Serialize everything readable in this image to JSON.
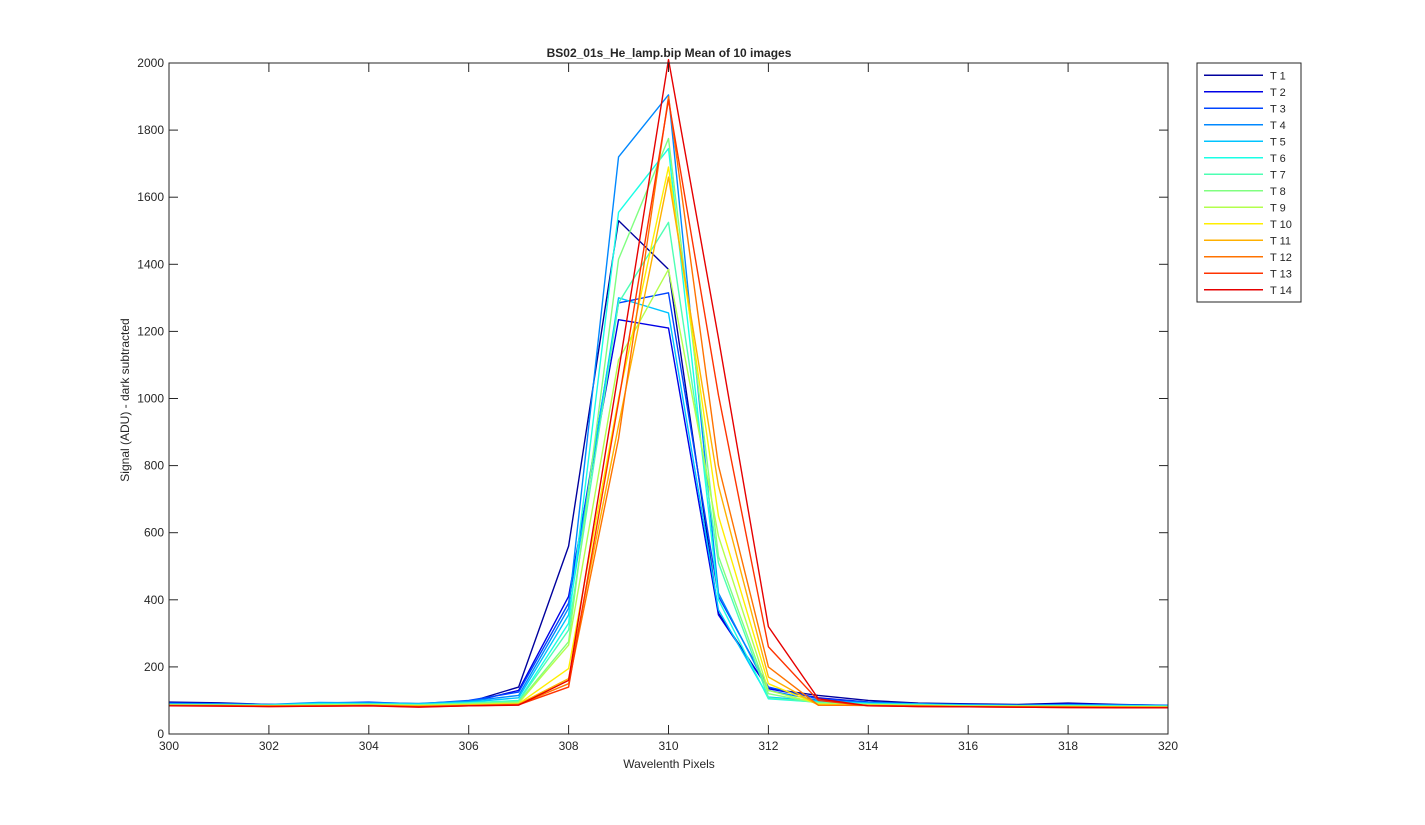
{
  "chart_data": {
    "type": "line",
    "title": "BS02_01s_He_lamp.bip  Mean of 10 images",
    "xlabel": "Wavelenth Pixels",
    "ylabel": "Signal (ADU) - dark subtracted",
    "xlim": [
      300,
      320
    ],
    "ylim": [
      0,
      2000
    ],
    "xticks": [
      "300",
      "302",
      "304",
      "306",
      "308",
      "310",
      "312",
      "314",
      "316",
      "318",
      "320"
    ],
    "yticks": [
      "0",
      "200",
      "400",
      "600",
      "800",
      "1000",
      "1200",
      "1400",
      "1600",
      "1800",
      "2000"
    ],
    "grid": false,
    "legend_position": "outside-top-right",
    "x": [
      300,
      301,
      302,
      303,
      304,
      305,
      306,
      307,
      308,
      309,
      310,
      311,
      312,
      313,
      314,
      315,
      316,
      317,
      318,
      319,
      320
    ],
    "series": [
      {
        "name": "T 1",
        "color": "#00009e",
        "values": [
          95,
          93,
          88,
          90,
          92,
          90,
          95,
          140,
          560,
          1530,
          1385,
          360,
          135,
          115,
          100,
          92,
          90,
          88,
          92,
          88,
          85
        ]
      },
      {
        "name": "T 2",
        "color": "#0000e6",
        "values": [
          93,
          91,
          88,
          89,
          90,
          89,
          94,
          130,
          410,
          1235,
          1210,
          355,
          135,
          108,
          95,
          90,
          88,
          86,
          90,
          87,
          85
        ]
      },
      {
        "name": "T 3",
        "color": "#0044ff",
        "values": [
          92,
          90,
          87,
          92,
          95,
          90,
          100,
          125,
          390,
          1285,
          1315,
          410,
          140,
          105,
          95,
          90,
          88,
          86,
          88,
          87,
          86
        ]
      },
      {
        "name": "T 4",
        "color": "#0088ff",
        "values": [
          90,
          90,
          88,
          94,
          93,
          91,
          98,
          115,
          375,
          1720,
          1905,
          420,
          130,
          100,
          93,
          90,
          87,
          86,
          87,
          86,
          85
        ]
      },
      {
        "name": "T 5",
        "color": "#00c4ff",
        "values": [
          89,
          88,
          87,
          92,
          91,
          90,
          95,
          108,
          355,
          1300,
          1255,
          370,
          110,
          98,
          92,
          89,
          86,
          85,
          86,
          85,
          84
        ]
      },
      {
        "name": "T 6",
        "color": "#19ffe6",
        "values": [
          88,
          87,
          86,
          90,
          90,
          88,
          93,
          100,
          330,
          1555,
          1745,
          400,
          105,
          95,
          90,
          88,
          85,
          84,
          85,
          84,
          83
        ]
      },
      {
        "name": "T 7",
        "color": "#4dffb3",
        "values": [
          88,
          87,
          85,
          88,
          89,
          87,
          92,
          98,
          310,
          1285,
          1525,
          510,
          108,
          94,
          89,
          87,
          84,
          84,
          84,
          83,
          82
        ]
      },
      {
        "name": "T 8",
        "color": "#80ff80",
        "values": [
          87,
          86,
          85,
          87,
          88,
          86,
          90,
          95,
          275,
          1415,
          1775,
          530,
          120,
          92,
          88,
          86,
          84,
          83,
          83,
          82,
          82
        ]
      },
      {
        "name": "T 9",
        "color": "#b3ff4d",
        "values": [
          86,
          86,
          84,
          86,
          87,
          85,
          88,
          92,
          265,
          1115,
          1385,
          590,
          130,
          90,
          87,
          85,
          83,
          82,
          82,
          81,
          81
        ]
      },
      {
        "name": "T 10",
        "color": "#ffee00",
        "values": [
          86,
          85,
          84,
          85,
          86,
          84,
          87,
          90,
          195,
          1000,
          1690,
          650,
          150,
          88,
          86,
          84,
          82,
          82,
          82,
          81,
          80
        ]
      },
      {
        "name": "T 11",
        "color": "#ffb000",
        "values": [
          85,
          85,
          83,
          84,
          85,
          83,
          86,
          89,
          165,
          920,
          1660,
          740,
          170,
          86,
          85,
          84,
          82,
          81,
          81,
          80,
          80
        ]
      },
      {
        "name": "T 12",
        "color": "#ff7300",
        "values": [
          85,
          84,
          83,
          84,
          85,
          82,
          85,
          88,
          150,
          880,
          1900,
          800,
          200,
          86,
          85,
          83,
          81,
          81,
          80,
          80,
          79
        ]
      },
      {
        "name": "T 13",
        "color": "#ff3300",
        "values": [
          84,
          84,
          82,
          83,
          84,
          81,
          84,
          87,
          140,
          990,
          1890,
          1010,
          260,
          100,
          84,
          82,
          81,
          80,
          79,
          79,
          78
        ]
      },
      {
        "name": "T 14",
        "color": "#e60000",
        "values": [
          84,
          83,
          82,
          83,
          84,
          80,
          84,
          86,
          160,
          1080,
          2010,
          1180,
          320,
          105,
          84,
          82,
          81,
          80,
          79,
          78,
          78
        ]
      }
    ]
  }
}
